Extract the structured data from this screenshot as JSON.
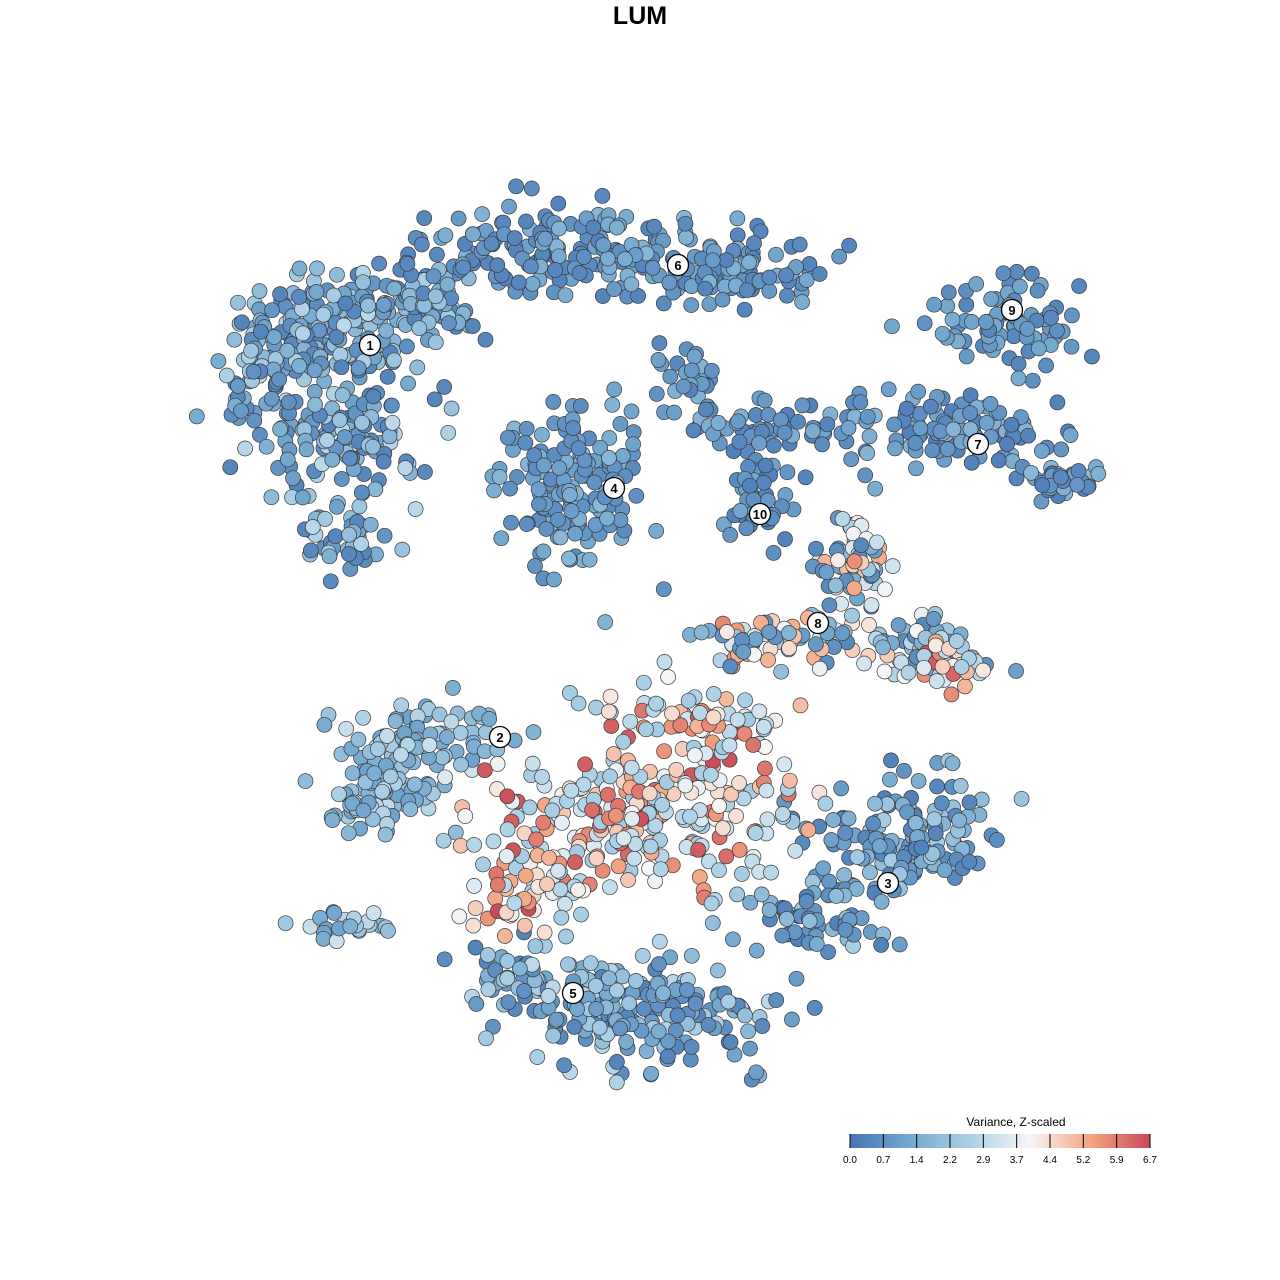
{
  "chart_data": {
    "type": "scatter",
    "title": "LUM",
    "xlabel": "",
    "ylabel": "",
    "grid": false,
    "legend": {
      "title": "Variance, Z-scaled",
      "position": "bottom-right",
      "tick_labels": [
        "0.0",
        "0.7",
        "1.4",
        "2.2",
        "2.9",
        "3.7",
        "4.4",
        "5.2",
        "5.9",
        "6.7"
      ],
      "range": [
        0.0,
        6.7
      ],
      "colors": [
        "#4575b4",
        "#74a9cf",
        "#abd0e6",
        "#f7f7f7",
        "#f4a582",
        "#c94a5a"
      ]
    },
    "cluster_labels": [
      "1",
      "2",
      "3",
      "4",
      "5",
      "6",
      "7",
      "8",
      "9",
      "10"
    ],
    "clusters": [
      {
        "label": "1",
        "value_range": [
          0.4,
          3.0
        ]
      },
      {
        "label": "2",
        "value_range": [
          1.2,
          3.3
        ]
      },
      {
        "label": "3",
        "value_range": [
          0.3,
          2.6
        ]
      },
      {
        "label": "4",
        "value_range": [
          0.6,
          1.9
        ]
      },
      {
        "label": "5",
        "value_range": [
          0.4,
          3.0
        ]
      },
      {
        "label": "6",
        "value_range": [
          0.4,
          1.8
        ]
      },
      {
        "label": "7",
        "value_range": [
          0.3,
          1.9
        ]
      },
      {
        "label": "8",
        "value_range": [
          0.5,
          5.9
        ]
      },
      {
        "label": "9",
        "value_range": [
          0.4,
          1.5
        ]
      },
      {
        "label": "10",
        "value_range": [
          0.3,
          1.4
        ]
      },
      {
        "label": "",
        "value_range": [
          2.5,
          6.7
        ]
      }
    ]
  }
}
